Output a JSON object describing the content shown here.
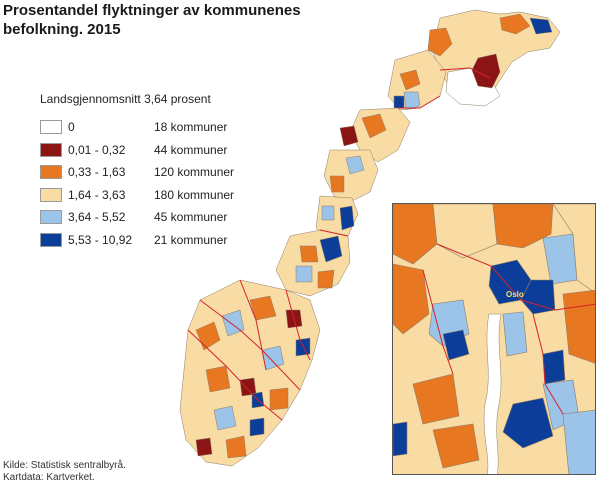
{
  "title": "Prosentandel flyktninger av kommunenes befolkning. 2015",
  "legend": {
    "heading": "Landsgjennomsnitt 3,64 prosent",
    "items": [
      {
        "range": "0",
        "count": "18 kommuner",
        "color": "#ffffff"
      },
      {
        "range": "0,01 - 0,32",
        "count": "44 kommuner",
        "color": "#8b1414"
      },
      {
        "range": "0,33 - 1,63",
        "count": "120 kommuner",
        "color": "#e87722"
      },
      {
        "range": "1,64 - 3,63",
        "count": "180 kommuner",
        "color": "#f9dca4"
      },
      {
        "range": "3,64 - 5,52",
        "count": "45 kommuner",
        "color": "#9cc3e8"
      },
      {
        "range": "5,53 - 10,92",
        "count": "21 kommuner",
        "color": "#0c3e99"
      }
    ]
  },
  "inset": {
    "label": "Oslo"
  },
  "source": {
    "line1": "Kilde: Statistisk sentralbyrå.",
    "line2": "Kartdata: Kartverket."
  },
  "colors": {
    "border": "#d6202a",
    "municipality_line": "#8e7c68",
    "inset_frame": "#555555"
  }
}
